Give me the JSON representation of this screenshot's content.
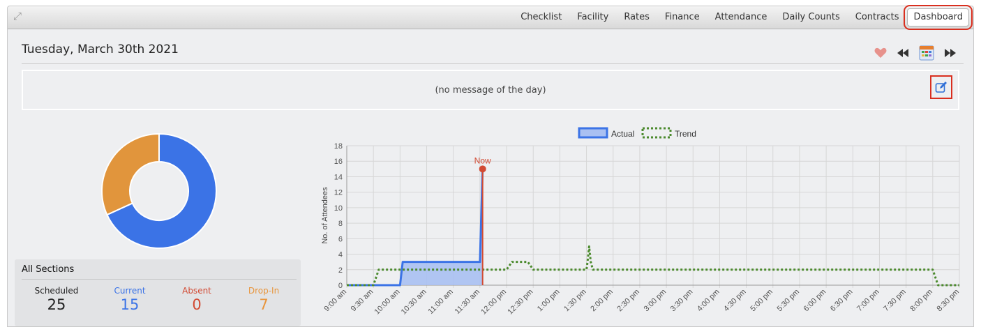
{
  "nav": {
    "tabs": [
      "Checklist",
      "Facility",
      "Rates",
      "Finance",
      "Attendance",
      "Daily Counts",
      "Contracts"
    ],
    "active_tab": "Dashboard"
  },
  "header": {
    "date": "Tuesday, March 30th 2021"
  },
  "toolbar_icons": [
    "heart-icon",
    "rewind-icon",
    "calendar-icon",
    "fast-forward-icon"
  ],
  "motd": {
    "text": "(no message of the day)"
  },
  "summary": {
    "title": "All Sections",
    "stats": [
      {
        "label": "Scheduled",
        "value": "25",
        "color": "#222222"
      },
      {
        "label": "Current",
        "value": "15",
        "color": "#3b73e6"
      },
      {
        "label": "Absent",
        "value": "0",
        "color": "#d24a33"
      },
      {
        "label": "Drop-In",
        "value": "7",
        "color": "#e8953c"
      }
    ]
  },
  "colors": {
    "actual": "#3b73e6",
    "actual_fill": "#a9c0f2",
    "trend": "#4b8a2d",
    "now": "#d24a33",
    "dropin": "#e1953c"
  },
  "chart_data": [
    {
      "type": "pie",
      "categories": [
        "Current",
        "Drop-In"
      ],
      "values": [
        15,
        7
      ]
    },
    {
      "type": "line",
      "legend": [
        "Actual",
        "Trend"
      ],
      "ylabel": "No. of Attendees",
      "ylim": [
        0,
        18
      ],
      "yticks": [
        0,
        2,
        4,
        6,
        8,
        10,
        12,
        14,
        16,
        18
      ],
      "xticks": [
        "9:00 am",
        "9:30 am",
        "10:00 am",
        "10:30 am",
        "11:00 am",
        "11:30 am",
        "12:00 pm",
        "12:30 pm",
        "1:00 pm",
        "1:30 pm",
        "2:00 pm",
        "2:30 pm",
        "3:00 pm",
        "3:30 pm",
        "4:00 pm",
        "4:30 pm",
        "5:00 pm",
        "5:30 pm",
        "6:00 pm",
        "6:30 pm",
        "7:00 pm",
        "7:30 pm",
        "8:00 pm",
        "8:30 pm"
      ],
      "now_label": "Now",
      "now_hour": 11.55,
      "series": [
        {
          "name": "Actual",
          "x": [
            9.0,
            9.5,
            9.55,
            10.0,
            10.05,
            11.5,
            11.55
          ],
          "y": [
            0,
            0,
            0,
            0,
            3,
            3,
            15
          ]
        },
        {
          "name": "Trend",
          "x": [
            9.0,
            9.5,
            9.6,
            12.0,
            12.1,
            12.4,
            12.5,
            13.5,
            13.52,
            13.55,
            13.58,
            13.62,
            20.0,
            20.1,
            20.5
          ],
          "y": [
            0,
            0,
            2,
            2,
            3,
            3,
            2,
            2,
            3,
            5,
            3,
            2,
            2,
            0,
            0
          ]
        }
      ]
    }
  ]
}
